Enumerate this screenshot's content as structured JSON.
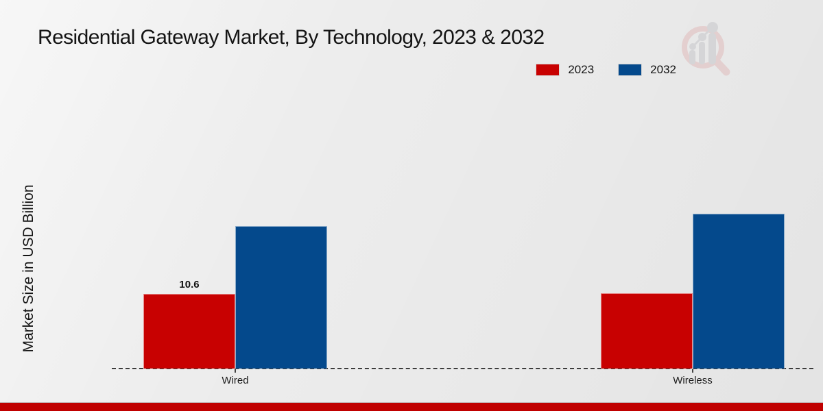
{
  "header": {
    "title": "Residential Gateway Market, By Technology, 2023 & 2032"
  },
  "legend": {
    "items": [
      {
        "label": "2023",
        "color": "#c80101"
      },
      {
        "label": "2032",
        "color": "#04498c"
      }
    ]
  },
  "y_axis": {
    "label": "Market Size in USD Billion"
  },
  "chart_data": {
    "type": "bar",
    "title": "Residential Gateway Market, By Technology, 2023 & 2032",
    "categories": [
      "Wired",
      "Wireless"
    ],
    "series": [
      {
        "name": "2023",
        "color": "#c80101",
        "values": [
          10.6,
          10.7
        ]
      },
      {
        "name": "2032",
        "color": "#04498c",
        "values": [
          20.2,
          22.0
        ]
      }
    ],
    "data_labels": [
      [
        "10.6",
        ""
      ],
      [
        "",
        ""
      ]
    ],
    "xlabel": "",
    "ylabel": "Market Size in USD Billion",
    "ylim": [
      0,
      25
    ],
    "grid": false,
    "legend_position": "top-right",
    "baseline_style": "dashed"
  },
  "watermark": {
    "name": "market-research-magnifier-logo"
  },
  "footer": {
    "bar_color": "#c00000"
  }
}
